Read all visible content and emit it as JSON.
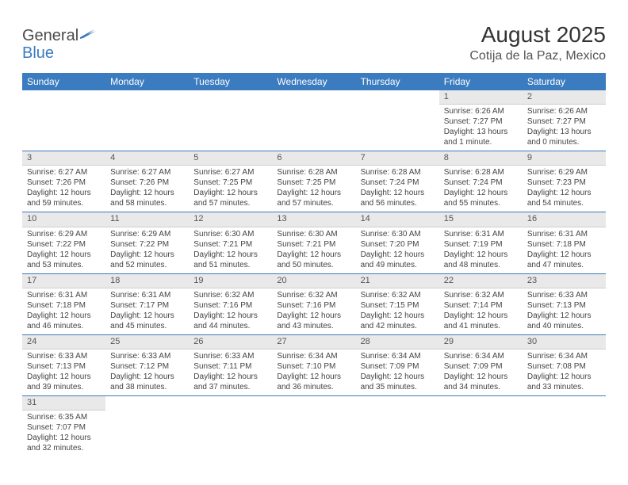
{
  "logo": {
    "general": "General",
    "blue": "Blue"
  },
  "title": "August 2025",
  "location": "Cotija de la Paz, Mexico",
  "colors": {
    "header_bg": "#3b7bbf",
    "header_text": "#ffffff",
    "daynum_bg": "#e9e9e9",
    "divider": "#3b7bbf",
    "text": "#444444"
  },
  "day_headers": [
    "Sunday",
    "Monday",
    "Tuesday",
    "Wednesday",
    "Thursday",
    "Friday",
    "Saturday"
  ],
  "weeks": [
    [
      null,
      null,
      null,
      null,
      null,
      {
        "n": "1",
        "sr": "Sunrise: 6:26 AM",
        "ss": "Sunset: 7:27 PM",
        "dl1": "Daylight: 13 hours",
        "dl2": "and 1 minute."
      },
      {
        "n": "2",
        "sr": "Sunrise: 6:26 AM",
        "ss": "Sunset: 7:27 PM",
        "dl1": "Daylight: 13 hours",
        "dl2": "and 0 minutes."
      }
    ],
    [
      {
        "n": "3",
        "sr": "Sunrise: 6:27 AM",
        "ss": "Sunset: 7:26 PM",
        "dl1": "Daylight: 12 hours",
        "dl2": "and 59 minutes."
      },
      {
        "n": "4",
        "sr": "Sunrise: 6:27 AM",
        "ss": "Sunset: 7:26 PM",
        "dl1": "Daylight: 12 hours",
        "dl2": "and 58 minutes."
      },
      {
        "n": "5",
        "sr": "Sunrise: 6:27 AM",
        "ss": "Sunset: 7:25 PM",
        "dl1": "Daylight: 12 hours",
        "dl2": "and 57 minutes."
      },
      {
        "n": "6",
        "sr": "Sunrise: 6:28 AM",
        "ss": "Sunset: 7:25 PM",
        "dl1": "Daylight: 12 hours",
        "dl2": "and 57 minutes."
      },
      {
        "n": "7",
        "sr": "Sunrise: 6:28 AM",
        "ss": "Sunset: 7:24 PM",
        "dl1": "Daylight: 12 hours",
        "dl2": "and 56 minutes."
      },
      {
        "n": "8",
        "sr": "Sunrise: 6:28 AM",
        "ss": "Sunset: 7:24 PM",
        "dl1": "Daylight: 12 hours",
        "dl2": "and 55 minutes."
      },
      {
        "n": "9",
        "sr": "Sunrise: 6:29 AM",
        "ss": "Sunset: 7:23 PM",
        "dl1": "Daylight: 12 hours",
        "dl2": "and 54 minutes."
      }
    ],
    [
      {
        "n": "10",
        "sr": "Sunrise: 6:29 AM",
        "ss": "Sunset: 7:22 PM",
        "dl1": "Daylight: 12 hours",
        "dl2": "and 53 minutes."
      },
      {
        "n": "11",
        "sr": "Sunrise: 6:29 AM",
        "ss": "Sunset: 7:22 PM",
        "dl1": "Daylight: 12 hours",
        "dl2": "and 52 minutes."
      },
      {
        "n": "12",
        "sr": "Sunrise: 6:30 AM",
        "ss": "Sunset: 7:21 PM",
        "dl1": "Daylight: 12 hours",
        "dl2": "and 51 minutes."
      },
      {
        "n": "13",
        "sr": "Sunrise: 6:30 AM",
        "ss": "Sunset: 7:21 PM",
        "dl1": "Daylight: 12 hours",
        "dl2": "and 50 minutes."
      },
      {
        "n": "14",
        "sr": "Sunrise: 6:30 AM",
        "ss": "Sunset: 7:20 PM",
        "dl1": "Daylight: 12 hours",
        "dl2": "and 49 minutes."
      },
      {
        "n": "15",
        "sr": "Sunrise: 6:31 AM",
        "ss": "Sunset: 7:19 PM",
        "dl1": "Daylight: 12 hours",
        "dl2": "and 48 minutes."
      },
      {
        "n": "16",
        "sr": "Sunrise: 6:31 AM",
        "ss": "Sunset: 7:18 PM",
        "dl1": "Daylight: 12 hours",
        "dl2": "and 47 minutes."
      }
    ],
    [
      {
        "n": "17",
        "sr": "Sunrise: 6:31 AM",
        "ss": "Sunset: 7:18 PM",
        "dl1": "Daylight: 12 hours",
        "dl2": "and 46 minutes."
      },
      {
        "n": "18",
        "sr": "Sunrise: 6:31 AM",
        "ss": "Sunset: 7:17 PM",
        "dl1": "Daylight: 12 hours",
        "dl2": "and 45 minutes."
      },
      {
        "n": "19",
        "sr": "Sunrise: 6:32 AM",
        "ss": "Sunset: 7:16 PM",
        "dl1": "Daylight: 12 hours",
        "dl2": "and 44 minutes."
      },
      {
        "n": "20",
        "sr": "Sunrise: 6:32 AM",
        "ss": "Sunset: 7:16 PM",
        "dl1": "Daylight: 12 hours",
        "dl2": "and 43 minutes."
      },
      {
        "n": "21",
        "sr": "Sunrise: 6:32 AM",
        "ss": "Sunset: 7:15 PM",
        "dl1": "Daylight: 12 hours",
        "dl2": "and 42 minutes."
      },
      {
        "n": "22",
        "sr": "Sunrise: 6:32 AM",
        "ss": "Sunset: 7:14 PM",
        "dl1": "Daylight: 12 hours",
        "dl2": "and 41 minutes."
      },
      {
        "n": "23",
        "sr": "Sunrise: 6:33 AM",
        "ss": "Sunset: 7:13 PM",
        "dl1": "Daylight: 12 hours",
        "dl2": "and 40 minutes."
      }
    ],
    [
      {
        "n": "24",
        "sr": "Sunrise: 6:33 AM",
        "ss": "Sunset: 7:13 PM",
        "dl1": "Daylight: 12 hours",
        "dl2": "and 39 minutes."
      },
      {
        "n": "25",
        "sr": "Sunrise: 6:33 AM",
        "ss": "Sunset: 7:12 PM",
        "dl1": "Daylight: 12 hours",
        "dl2": "and 38 minutes."
      },
      {
        "n": "26",
        "sr": "Sunrise: 6:33 AM",
        "ss": "Sunset: 7:11 PM",
        "dl1": "Daylight: 12 hours",
        "dl2": "and 37 minutes."
      },
      {
        "n": "27",
        "sr": "Sunrise: 6:34 AM",
        "ss": "Sunset: 7:10 PM",
        "dl1": "Daylight: 12 hours",
        "dl2": "and 36 minutes."
      },
      {
        "n": "28",
        "sr": "Sunrise: 6:34 AM",
        "ss": "Sunset: 7:09 PM",
        "dl1": "Daylight: 12 hours",
        "dl2": "and 35 minutes."
      },
      {
        "n": "29",
        "sr": "Sunrise: 6:34 AM",
        "ss": "Sunset: 7:09 PM",
        "dl1": "Daylight: 12 hours",
        "dl2": "and 34 minutes."
      },
      {
        "n": "30",
        "sr": "Sunrise: 6:34 AM",
        "ss": "Sunset: 7:08 PM",
        "dl1": "Daylight: 12 hours",
        "dl2": "and 33 minutes."
      }
    ],
    [
      {
        "n": "31",
        "sr": "Sunrise: 6:35 AM",
        "ss": "Sunset: 7:07 PM",
        "dl1": "Daylight: 12 hours",
        "dl2": "and 32 minutes."
      },
      null,
      null,
      null,
      null,
      null,
      null
    ]
  ]
}
